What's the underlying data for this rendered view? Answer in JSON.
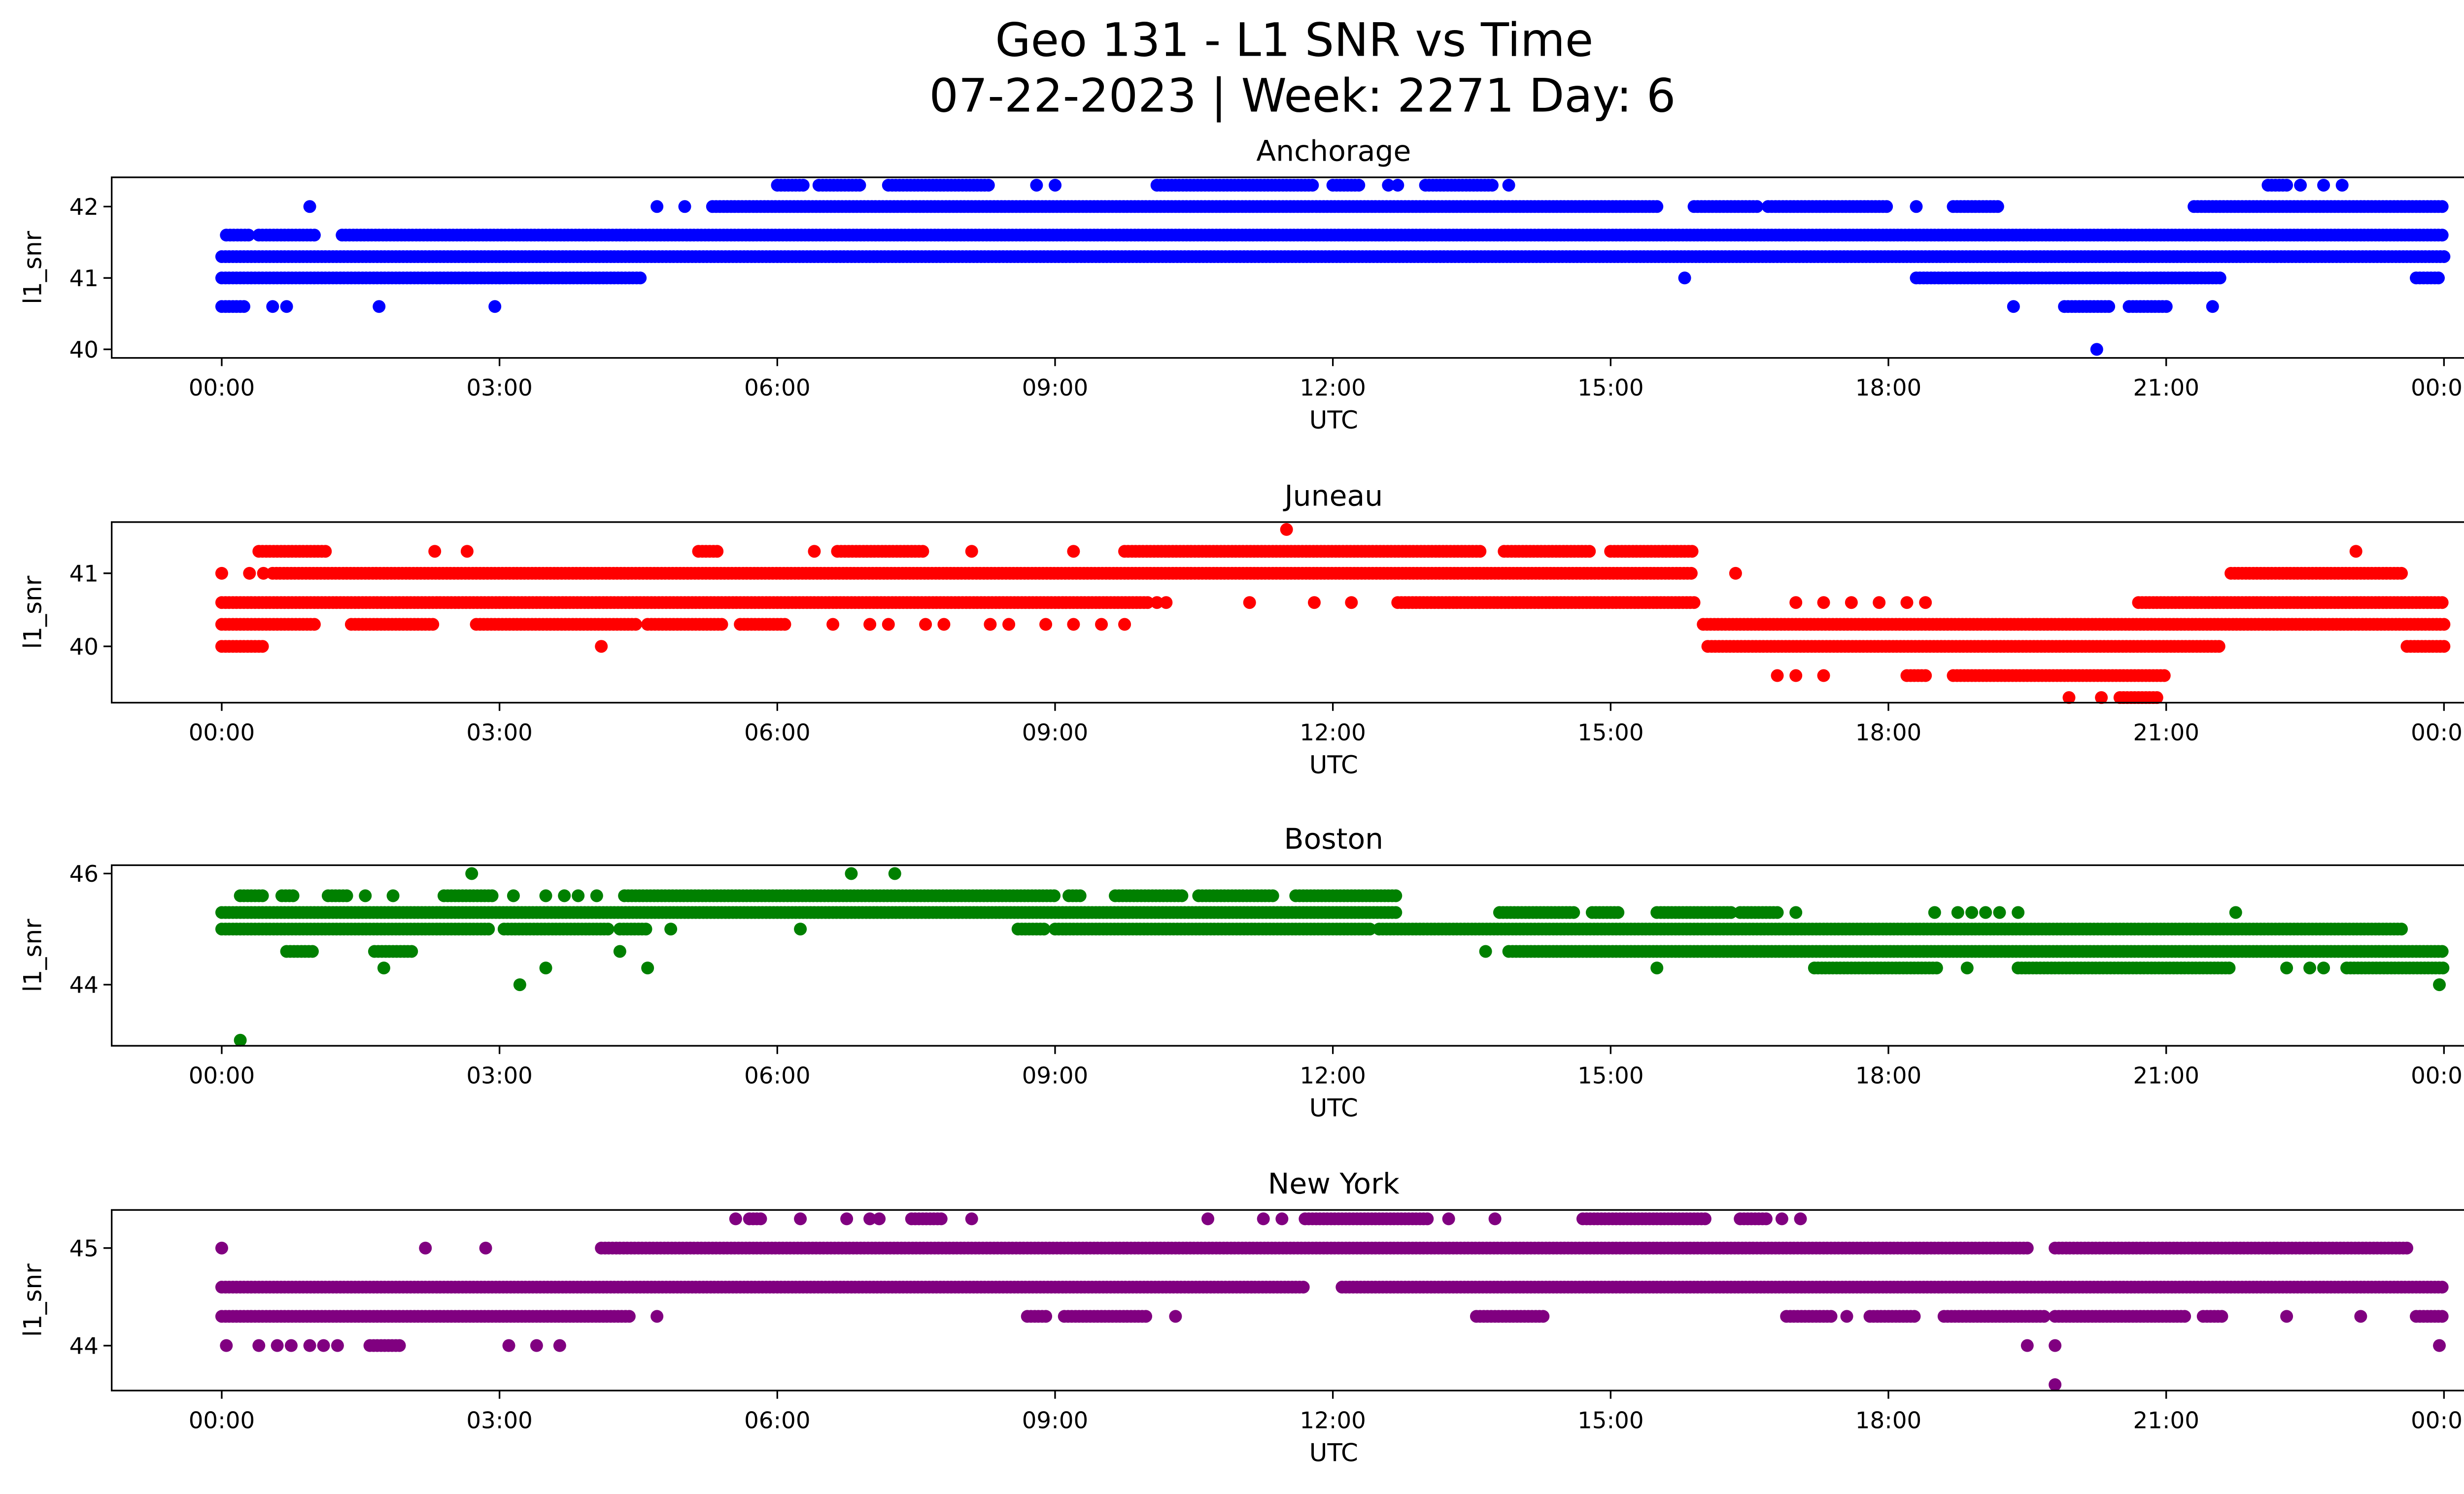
{
  "chart_data": {
    "type": "scatter",
    "title": "Geo 131 - L1 SNR vs Time",
    "subtitle": "07-22-2023 | Week: 2271 Day: 6",
    "xlabel": "UTC",
    "ylabel": "l1_snr",
    "x_unit": "hours UTC",
    "xlim": [
      -1.2,
      25.2
    ],
    "x_ticks": [
      0,
      3,
      6,
      9,
      12,
      15,
      18,
      21,
      24
    ],
    "x_tick_labels": [
      "00:00",
      "03:00",
      "06:00",
      "09:00",
      "12:00",
      "15:00",
      "18:00",
      "21:00",
      "00:00"
    ],
    "sample_step_hours": 0.04,
    "note": "each band lists time ranges (hours) where samples at that SNR value are continuous; points are isolated samples",
    "subplots": [
      {
        "title": "Anchorage",
        "color": "#0000ff",
        "ylim": [
          39.88,
          42.41
        ],
        "y_ticks": [
          40,
          41,
          42
        ],
        "bands": [
          {
            "y": 41.3,
            "ranges": [
              [
                0,
                24
              ]
            ]
          },
          {
            "y": 41.6,
            "ranges": [
              [
                0.05,
                0.3
              ],
              [
                0.4,
                1.0
              ],
              [
                1.3,
                24
              ]
            ]
          },
          {
            "y": 41.0,
            "ranges": [
              [
                0,
                4.55
              ],
              [
                18.3,
                21.6
              ],
              [
                23.7,
                23.95
              ]
            ]
          },
          {
            "y": 42.0,
            "ranges": [
              [
                5.3,
                15.5
              ],
              [
                15.9,
                16.6
              ],
              [
                16.7,
                18.0
              ],
              [
                18.7,
                19.2
              ],
              [
                21.3,
                24
              ]
            ]
          },
          {
            "y": 42.3,
            "ranges": [
              [
                6.0,
                6.3
              ],
              [
                6.45,
                6.9
              ],
              [
                7.2,
                8.3
              ],
              [
                10.1,
                11.8
              ],
              [
                12.0,
                12.3
              ],
              [
                13.0,
                13.75
              ],
              [
                22.1,
                22.3
              ]
            ]
          },
          {
            "y": 40.6,
            "ranges": [
              [
                0,
                0.25
              ],
              [
                19.9,
                20.4
              ],
              [
                20.6,
                21.0
              ]
            ]
          }
        ],
        "points": [
          [
            0.95,
            42
          ],
          [
            4.7,
            42
          ],
          [
            5.0,
            42
          ],
          [
            18.3,
            42
          ],
          [
            8.8,
            42.3
          ],
          [
            9.0,
            42.3
          ],
          [
            12.6,
            42.3
          ],
          [
            12.7,
            42.3
          ],
          [
            13.9,
            42.3
          ],
          [
            22.45,
            42.3
          ],
          [
            22.7,
            42.3
          ],
          [
            22.9,
            42.3
          ],
          [
            15.8,
            41
          ],
          [
            0.55,
            40.6
          ],
          [
            0.7,
            40.6
          ],
          [
            1.7,
            40.6
          ],
          [
            2.95,
            40.6
          ],
          [
            19.35,
            40.6
          ],
          [
            21.5,
            40.6
          ],
          [
            20.25,
            40
          ]
        ]
      },
      {
        "title": "Juneau",
        "color": "#ff0000",
        "ylim": [
          39.23,
          41.7
        ],
        "y_ticks": [
          40,
          41
        ],
        "bands": [
          {
            "y": 41.0,
            "ranges": [
              [
                0.55,
                15.9
              ],
              [
                21.7,
                23.55
              ]
            ]
          },
          {
            "y": 40.6,
            "ranges": [
              [
                0,
                10.0
              ],
              [
                12.7,
                15.9
              ],
              [
                20.7,
                24
              ]
            ]
          },
          {
            "y": 40.3,
            "ranges": [
              [
                0,
                1.0
              ],
              [
                1.4,
                2.3
              ],
              [
                2.75,
                4.5
              ],
              [
                4.6,
                5.4
              ],
              [
                5.6,
                6.1
              ],
              [
                16.0,
                24
              ]
            ]
          },
          {
            "y": 40.0,
            "ranges": [
              [
                0,
                0.45
              ],
              [
                16.05,
                21.6
              ],
              [
                23.6,
                24
              ]
            ]
          },
          {
            "y": 39.6,
            "ranges": [
              [
                18.2,
                18.4
              ],
              [
                18.7,
                21.0
              ]
            ]
          },
          {
            "y": 41.3,
            "ranges": [
              [
                0.4,
                1.15
              ],
              [
                5.15,
                5.35
              ],
              [
                6.65,
                7.6
              ],
              [
                9.75,
                13.6
              ],
              [
                13.85,
                14.8
              ],
              [
                15.0,
                15.9
              ]
            ]
          },
          {
            "y": 39.3,
            "ranges": [
              [
                20.5,
                20.9
              ]
            ]
          }
        ],
        "points": [
          [
            0,
            41
          ],
          [
            0.3,
            41
          ],
          [
            0.45,
            41
          ],
          [
            16.35,
            41
          ],
          [
            10.1,
            40.6
          ],
          [
            10.2,
            40.6
          ],
          [
            11.1,
            40.6
          ],
          [
            11.8,
            40.6
          ],
          [
            12.2,
            40.6
          ],
          [
            17.0,
            40.6
          ],
          [
            17.3,
            40.6
          ],
          [
            17.6,
            40.6
          ],
          [
            17.9,
            40.6
          ],
          [
            18.2,
            40.6
          ],
          [
            18.4,
            40.6
          ],
          [
            6.6,
            40.3
          ],
          [
            7.0,
            40.3
          ],
          [
            7.2,
            40.3
          ],
          [
            7.6,
            40.3
          ],
          [
            7.8,
            40.3
          ],
          [
            8.3,
            40.3
          ],
          [
            8.5,
            40.3
          ],
          [
            8.9,
            40.3
          ],
          [
            9.2,
            40.3
          ],
          [
            9.5,
            40.3
          ],
          [
            9.75,
            40.3
          ],
          [
            4.1,
            40
          ],
          [
            16.8,
            39.6
          ],
          [
            17.0,
            39.6
          ],
          [
            17.3,
            39.6
          ],
          [
            19.95,
            39.3
          ],
          [
            20.3,
            39.3
          ],
          [
            2.3,
            41.3
          ],
          [
            2.65,
            41.3
          ],
          [
            6.4,
            41.3
          ],
          [
            8.1,
            41.3
          ],
          [
            9.2,
            41.3
          ],
          [
            23.05,
            41.3
          ],
          [
            11.5,
            41.6
          ]
        ]
      },
      {
        "title": "Boston",
        "color": "#008000",
        "ylim": [
          42.9,
          46.15
        ],
        "y_ticks": [
          44,
          46
        ],
        "bands": [
          {
            "y": 45.3,
            "ranges": [
              [
                0,
                12.7
              ],
              [
                13.8,
                14.6
              ],
              [
                14.8,
                15.1
              ],
              [
                15.5,
                16.3
              ],
              [
                16.4,
                16.8
              ]
            ]
          },
          {
            "y": 45.0,
            "ranges": [
              [
                0,
                2.9
              ],
              [
                3.05,
                4.2
              ],
              [
                4.3,
                4.6
              ],
              [
                8.6,
                8.9
              ],
              [
                9.0,
                12.4
              ],
              [
                12.5,
                23.55
              ]
            ]
          },
          {
            "y": 45.6,
            "ranges": [
              [
                0.2,
                0.45
              ],
              [
                0.65,
                0.8
              ],
              [
                1.15,
                1.35
              ],
              [
                2.4,
                2.95
              ],
              [
                4.35,
                9.0
              ],
              [
                9.15,
                9.3
              ],
              [
                9.65,
                10.4
              ],
              [
                10.55,
                11.35
              ],
              [
                11.6,
                12.7
              ]
            ]
          },
          {
            "y": 44.6,
            "ranges": [
              [
                0.7,
                1.0
              ],
              [
                1.65,
                2.05
              ],
              [
                13.9,
                24
              ]
            ]
          },
          {
            "y": 44.3,
            "ranges": [
              [
                17.2,
                18.55
              ],
              [
                19.4,
                21.7
              ],
              [
                22.95,
                24
              ]
            ]
          }
        ],
        "points": [
          [
            17.0,
            45.3
          ],
          [
            18.5,
            45.3
          ],
          [
            18.75,
            45.3
          ],
          [
            18.9,
            45.3
          ],
          [
            19.05,
            45.3
          ],
          [
            19.2,
            45.3
          ],
          [
            19.4,
            45.3
          ],
          [
            21.75,
            45.3
          ],
          [
            4.85,
            45
          ],
          [
            6.25,
            45
          ],
          [
            1.55,
            45.6
          ],
          [
            1.85,
            45.6
          ],
          [
            3.15,
            45.6
          ],
          [
            3.5,
            45.6
          ],
          [
            3.7,
            45.6
          ],
          [
            3.85,
            45.6
          ],
          [
            4.05,
            45.6
          ],
          [
            4.3,
            44.6
          ],
          [
            13.65,
            44.6
          ],
          [
            1.75,
            44.3
          ],
          [
            3.5,
            44.3
          ],
          [
            4.6,
            44.3
          ],
          [
            15.5,
            44.3
          ],
          [
            18.85,
            44.3
          ],
          [
            22.3,
            44.3
          ],
          [
            22.55,
            44.3
          ],
          [
            22.7,
            44.3
          ],
          [
            3.22,
            44
          ],
          [
            23.95,
            44
          ],
          [
            2.7,
            46
          ],
          [
            6.8,
            46
          ],
          [
            7.27,
            46
          ],
          [
            0.2,
            43
          ]
        ]
      },
      {
        "title": "New York",
        "color": "#800080",
        "ylim": [
          43.54,
          45.39
        ],
        "y_ticks": [
          44,
          45
        ],
        "bands": [
          {
            "y": 44.6,
            "ranges": [
              [
                0,
                11.7
              ],
              [
                12.1,
                24
              ]
            ]
          },
          {
            "y": 44.3,
            "ranges": [
              [
                0,
                4.4
              ],
              [
                8.7,
                8.9
              ],
              [
                9.1,
                10.0
              ],
              [
                13.55,
                14.3
              ],
              [
                16.9,
                17.4
              ],
              [
                17.8,
                18.3
              ],
              [
                18.6,
                19.7
              ],
              [
                19.8,
                21.2
              ],
              [
                21.4,
                21.6
              ],
              [
                23.7,
                24
              ]
            ]
          },
          {
            "y": 45.0,
            "ranges": [
              [
                4.1,
                19.5
              ],
              [
                19.8,
                23.6
              ]
            ]
          },
          {
            "y": 45.3,
            "ranges": [
              [
                5.7,
                5.85
              ],
              [
                7.45,
                7.8
              ],
              [
                11.7,
                13.05
              ],
              [
                14.7,
                16.05
              ],
              [
                16.4,
                16.7
              ]
            ]
          },
          {
            "y": 44.0,
            "ranges": [
              [
                1.6,
                1.95
              ]
            ]
          }
        ],
        "points": [
          [
            4.7,
            44.3
          ],
          [
            10.3,
            44.3
          ],
          [
            17.55,
            44.3
          ],
          [
            22.3,
            44.3
          ],
          [
            23.1,
            44.3
          ],
          [
            0.05,
            44
          ],
          [
            0.4,
            44
          ],
          [
            0.6,
            44
          ],
          [
            0.75,
            44
          ],
          [
            0.95,
            44
          ],
          [
            1.1,
            44
          ],
          [
            1.25,
            44
          ],
          [
            3.1,
            44
          ],
          [
            3.4,
            44
          ],
          [
            3.65,
            44
          ],
          [
            19.5,
            44
          ],
          [
            19.8,
            44
          ],
          [
            23.95,
            44
          ],
          [
            0,
            45
          ],
          [
            2.2,
            45
          ],
          [
            2.85,
            45
          ],
          [
            5.55,
            45.3
          ],
          [
            6.25,
            45.3
          ],
          [
            6.75,
            45.3
          ],
          [
            7.0,
            45.3
          ],
          [
            7.1,
            45.3
          ],
          [
            8.1,
            45.3
          ],
          [
            10.65,
            45.3
          ],
          [
            11.25,
            45.3
          ],
          [
            11.45,
            45.3
          ],
          [
            13.25,
            45.3
          ],
          [
            13.75,
            45.3
          ],
          [
            16.85,
            45.3
          ],
          [
            17.05,
            45.3
          ],
          [
            19.8,
            43.6
          ]
        ]
      }
    ]
  }
}
